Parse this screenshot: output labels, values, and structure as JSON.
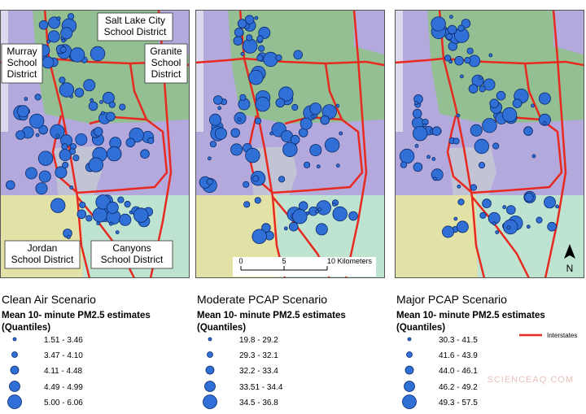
{
  "panels": [
    {
      "title": "Clean Air Scenario",
      "legend_title": "Mean 10- minute PM2.5 estimates",
      "legend_subtitle": "(Quantiles)",
      "legend": [
        "1.51 - 3.46",
        "3.47 - 4.10",
        "4.11 - 4.48",
        "4.49 - 4.99",
        "5.00 - 6.06"
      ]
    },
    {
      "title": "Moderate PCAP Scenario",
      "legend_title": "Mean 10- minute PM2.5 estimates",
      "legend_subtitle": "(Quantiles)",
      "legend": [
        "19.8 - 29.2",
        "29.3 - 32.1",
        "32.2 - 33.4",
        "33.51 - 34.4",
        "34.5 - 36.8"
      ]
    },
    {
      "title": "Major PCAP Scenario",
      "legend_title": "Mean 10- minute PM2.5 estimates",
      "legend_subtitle": "(Quantiles)",
      "legend": [
        "30.3 - 41.5",
        "41.6 - 43.9",
        "44.0 - 46.1",
        "46.2 - 49.2",
        "49.3 - 57.5"
      ]
    }
  ],
  "map_labels": [
    {
      "lines": [
        "Salt Lake City",
        "School District"
      ]
    },
    {
      "lines": [
        "Murray",
        "School",
        "District"
      ]
    },
    {
      "lines": [
        "Granite",
        "School",
        "District"
      ]
    },
    {
      "lines": [
        "Jordan",
        "School District"
      ]
    },
    {
      "lines": [
        "Canyons",
        "School District"
      ]
    }
  ],
  "scale_bar": [
    "0",
    "5",
    "10 Kilometers"
  ],
  "north": "N",
  "interstates": "Interstates",
  "watermark": "SCIENCEAQ.COM"
}
